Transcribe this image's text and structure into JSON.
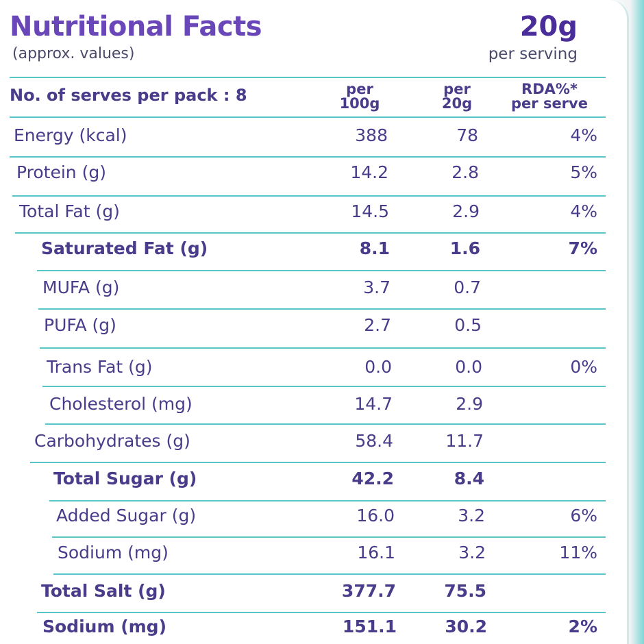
{
  "header": {
    "title": "Nutritional Facts",
    "subtitle": "(approx. values)",
    "serving_size": "20g",
    "serving_label": "per serving"
  },
  "table": {
    "columns": [
      {
        "line1": "No. of serves per pack : 8",
        "line2": ""
      },
      {
        "line1": "per",
        "line2": "100g"
      },
      {
        "line1": "per",
        "line2": "20g"
      },
      {
        "line1": "RDA%*",
        "line2": "per serve"
      }
    ],
    "rows": [
      {
        "label": "Energy (kcal)",
        "per100": "388",
        "per20": "78",
        "rda": "4%"
      },
      {
        "label": "Protein (g)",
        "per100": "14.2",
        "per20": "2.8",
        "rda": "5%"
      },
      {
        "label": "Total Fat (g)",
        "per100": "14.5",
        "per20": "2.9",
        "rda": "4%"
      },
      {
        "label": "Saturated Fat (g)",
        "per100": "8.1",
        "per20": "1.6",
        "rda": "7%"
      },
      {
        "label": "MUFA (g)",
        "per100": "3.7",
        "per20": "0.7",
        "rda": ""
      },
      {
        "label": "PUFA (g)",
        "per100": "2.7",
        "per20": "0.5",
        "rda": ""
      },
      {
        "label": "Trans Fat (g)",
        "per100": "0.0",
        "per20": "0.0",
        "rda": "0%"
      },
      {
        "label": "Cholesterol (mg)",
        "per100": "14.7",
        "per20": "2.9",
        "rda": ""
      },
      {
        "label": "Carbohydrates (g)",
        "per100": "58.4",
        "per20": "11.7",
        "rda": ""
      },
      {
        "label": "Total Sugar (g)",
        "per100": "42.2",
        "per20": "8.4",
        "rda": ""
      },
      {
        "label": "Added Sugar (g)",
        "per100": "16.0",
        "per20": "3.2",
        "rda": "6%"
      },
      {
        "label": "Sodium (mg)",
        "per100": "16.1",
        "per20": "3.2",
        "rda": "11%"
      },
      {
        "label": "Total Salt (g)",
        "per100": "377.7",
        "per20": "75.5",
        "rda": ""
      },
      {
        "label": "Sodium (mg)",
        "per100": "151.1",
        "per20": "30.2",
        "rda": "2%"
      }
    ]
  },
  "colors": {
    "title": "#6a47b8",
    "text": "#4a3c8a",
    "rule": "#58c6c6"
  }
}
